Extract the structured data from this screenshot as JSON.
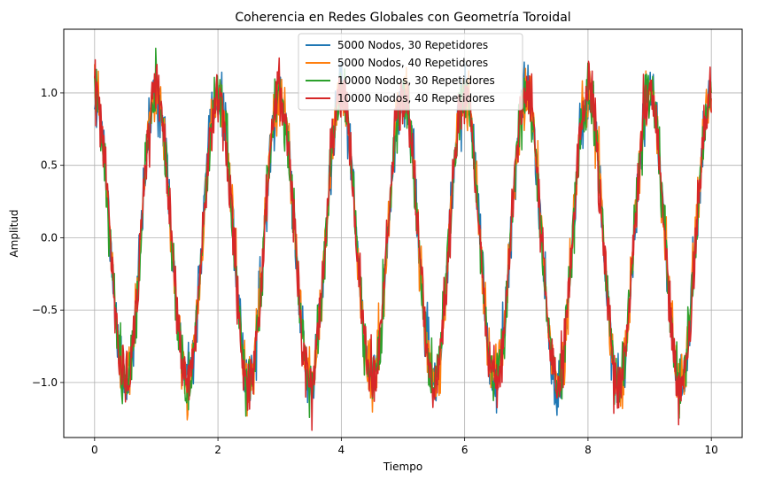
{
  "chart_data": {
    "type": "line",
    "title": "Coherencia en Redes Globales con Geometría Toroidal",
    "xlabel": "Tiempo",
    "ylabel": "Amplitud",
    "xlim": [
      -0.5,
      10.5
    ],
    "ylim": [
      -1.38,
      1.44
    ],
    "x_ticks": [
      0,
      2,
      4,
      6,
      8,
      10
    ],
    "y_ticks": [
      -1.0,
      -0.5,
      0.0,
      0.5,
      1.0
    ],
    "x_tick_labels": [
      "0",
      "2",
      "4",
      "6",
      "8",
      "10"
    ],
    "y_tick_labels": [
      "−1.0",
      "−0.5",
      "0.0",
      "0.5",
      "1.0"
    ],
    "grid": true,
    "legend_position": "top-center",
    "signal": {
      "function": "cos(2*pi*t)",
      "t_start": 0,
      "t_end": 10,
      "noise_amplitude": 0.1
    },
    "series": [
      {
        "name": "5000 Nodos, 30 Repetidores",
        "color": "#1f77b4",
        "seed": 11
      },
      {
        "name": "5000 Nodos, 40 Repetidores",
        "color": "#ff7f0e",
        "seed": 23
      },
      {
        "name": "10000 Nodos, 30 Repetidores",
        "color": "#2ca02c",
        "seed": 37
      },
      {
        "name": "10000 Nodos, 40 Repetidores",
        "color": "#d62728",
        "seed": 53
      }
    ]
  }
}
